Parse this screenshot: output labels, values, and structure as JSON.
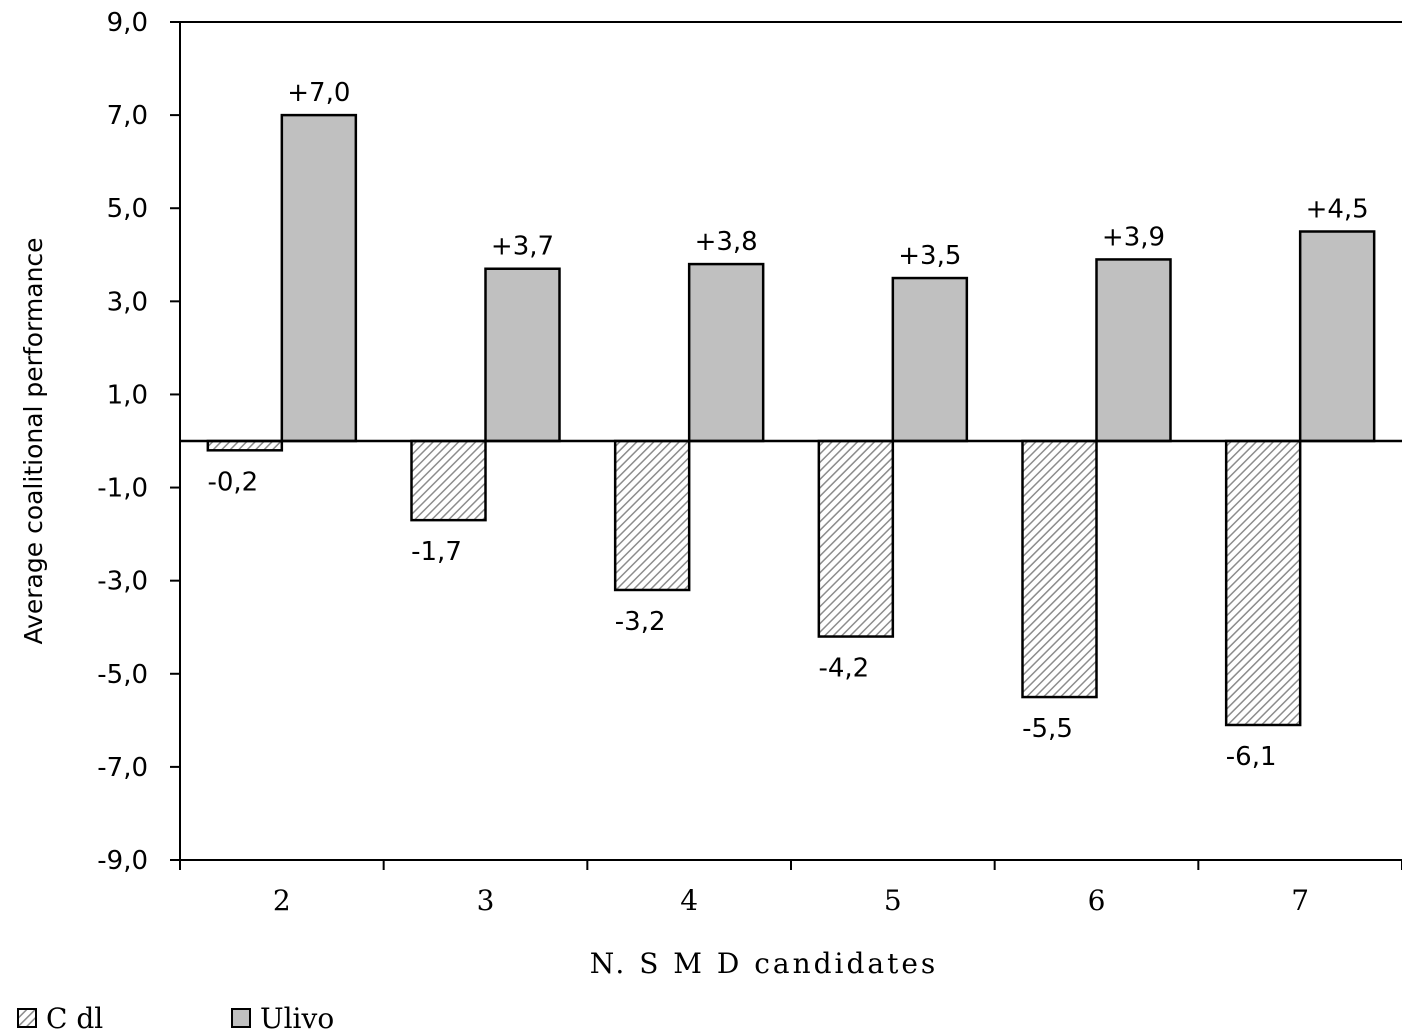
{
  "chart_data": {
    "type": "bar",
    "categories": [
      "2",
      "3",
      "4",
      "5",
      "6",
      "7"
    ],
    "series": [
      {
        "name": "C dl",
        "values": [
          -0.2,
          -1.7,
          -3.2,
          -4.2,
          -5.5,
          -6.1
        ],
        "labels": [
          "-0,2",
          "-1,7",
          "-3,2",
          "-4,2",
          "-5,5",
          "-6,1"
        ],
        "fill": "hatched-gray"
      },
      {
        "name": "Ulivo",
        "values": [
          7.0,
          3.7,
          3.8,
          3.5,
          3.9,
          4.5
        ],
        "labels": [
          "+7,0",
          "+3,7",
          "+3,8",
          "+3,5",
          "+3,9",
          "+4,5"
        ],
        "fill": "#c0c0c0"
      }
    ],
    "xlabel": "N. S M D candidates",
    "ylabel": "Average coalitional performance",
    "ylim": [
      -9,
      9
    ],
    "yticks": [
      9,
      7,
      5,
      3,
      1,
      -1,
      -3,
      -5,
      -7,
      -9
    ],
    "ytick_labels": [
      "9,0",
      "7,0",
      "5,0",
      "3,0",
      "1,0",
      "-1,0",
      "-3,0",
      "-5,0",
      "-7,0",
      "-9,0"
    ],
    "grid": false,
    "legend_position": "bottom-left"
  }
}
